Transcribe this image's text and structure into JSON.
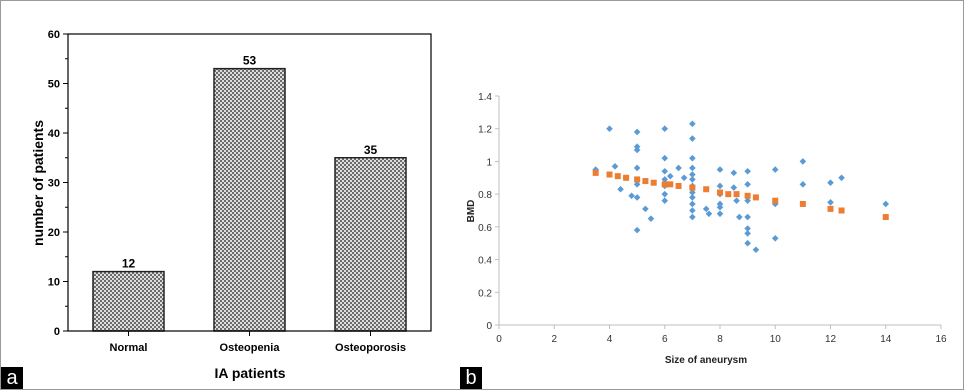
{
  "panels": {
    "a": "a",
    "b": "b"
  },
  "chart_data": [
    {
      "type": "bar",
      "title": "",
      "xlabel": "IA patients",
      "ylabel": "number of patients",
      "categories": [
        "Normal",
        "Osteopenia",
        "Osteoporosis"
      ],
      "values": [
        12,
        53,
        35
      ],
      "data_labels": [
        "12",
        "53",
        "35"
      ],
      "ylim": [
        0,
        60
      ],
      "yticks": [
        0,
        10,
        20,
        30,
        40,
        50,
        60
      ],
      "bar_pattern": "crosshatch",
      "grid": false,
      "legend": "none"
    },
    {
      "type": "scatter",
      "title": "",
      "xlabel": "Size of aneurysm",
      "ylabel": "BMD",
      "xlim": [
        0,
        16
      ],
      "ylim": [
        0,
        1.4
      ],
      "xticks": [
        "0",
        "2",
        "4",
        "6",
        "8",
        "10",
        "12",
        "14",
        "16"
      ],
      "yticks": [
        "0",
        "0.2",
        "0.4",
        "0.6",
        "0.8",
        "1",
        "1.2",
        "1.4"
      ],
      "grid": false,
      "legend": "none",
      "colors": {
        "observed": "#5b9bd5",
        "predicted": "#ed7d31"
      },
      "series": [
        {
          "marker": "diamond",
          "color": "#5b9bd5",
          "points": [
            [
              3.5,
              0.95
            ],
            [
              4,
              1.2
            ],
            [
              4.2,
              0.97
            ],
            [
              4.4,
              0.83
            ],
            [
              4.6,
              0.9
            ],
            [
              4.8,
              0.79
            ],
            [
              5,
              1.18
            ],
            [
              5,
              1.09
            ],
            [
              5,
              1.07
            ],
            [
              5,
              0.96
            ],
            [
              5,
              0.86
            ],
            [
              5,
              0.78
            ],
            [
              5,
              0.58
            ],
            [
              5.3,
              0.71
            ],
            [
              5.5,
              0.65
            ],
            [
              6,
              1.2
            ],
            [
              6,
              1.02
            ],
            [
              6,
              0.94
            ],
            [
              6,
              0.89
            ],
            [
              6,
              0.85
            ],
            [
              6,
              0.8
            ],
            [
              6,
              0.76
            ],
            [
              6.2,
              0.91
            ],
            [
              6.5,
              0.96
            ],
            [
              6.7,
              0.9
            ],
            [
              7,
              1.23
            ],
            [
              7,
              1.14
            ],
            [
              7,
              1.02
            ],
            [
              7,
              0.96
            ],
            [
              7,
              0.92
            ],
            [
              7,
              0.89
            ],
            [
              7,
              0.85
            ],
            [
              7,
              0.81
            ],
            [
              7,
              0.78
            ],
            [
              7,
              0.74
            ],
            [
              7,
              0.7
            ],
            [
              7,
              0.66
            ],
            [
              7.5,
              0.71
            ],
            [
              7.6,
              0.68
            ],
            [
              8,
              0.95
            ],
            [
              8,
              0.85
            ],
            [
              8,
              0.8
            ],
            [
              8,
              0.74
            ],
            [
              8,
              0.72
            ],
            [
              8,
              0.68
            ],
            [
              8.5,
              0.93
            ],
            [
              8.5,
              0.84
            ],
            [
              8.6,
              0.76
            ],
            [
              8.7,
              0.66
            ],
            [
              9,
              0.94
            ],
            [
              9,
              0.86
            ],
            [
              9,
              0.76
            ],
            [
              9,
              0.66
            ],
            [
              9,
              0.59
            ],
            [
              9,
              0.56
            ],
            [
              9,
              0.5
            ],
            [
              9.3,
              0.46
            ],
            [
              10,
              0.95
            ],
            [
              10,
              0.74
            ],
            [
              10,
              0.53
            ],
            [
              11,
              1.0
            ],
            [
              11,
              0.86
            ],
            [
              12,
              0.87
            ],
            [
              12,
              0.75
            ],
            [
              12.4,
              0.9
            ],
            [
              14,
              0.74
            ]
          ]
        },
        {
          "marker": "square",
          "color": "#ed7d31",
          "points": [
            [
              3.5,
              0.93
            ],
            [
              4,
              0.92
            ],
            [
              4.3,
              0.91
            ],
            [
              4.6,
              0.9
            ],
            [
              5,
              0.89
            ],
            [
              5.3,
              0.88
            ],
            [
              5.6,
              0.87
            ],
            [
              6,
              0.86
            ],
            [
              6.2,
              0.86
            ],
            [
              6.5,
              0.85
            ],
            [
              7,
              0.84
            ],
            [
              7.5,
              0.83
            ],
            [
              8,
              0.81
            ],
            [
              8.3,
              0.8
            ],
            [
              8.6,
              0.8
            ],
            [
              9,
              0.79
            ],
            [
              9.3,
              0.78
            ],
            [
              10,
              0.76
            ],
            [
              11,
              0.74
            ],
            [
              12,
              0.71
            ],
            [
              12.4,
              0.7
            ],
            [
              14,
              0.66
            ]
          ]
        }
      ]
    }
  ]
}
